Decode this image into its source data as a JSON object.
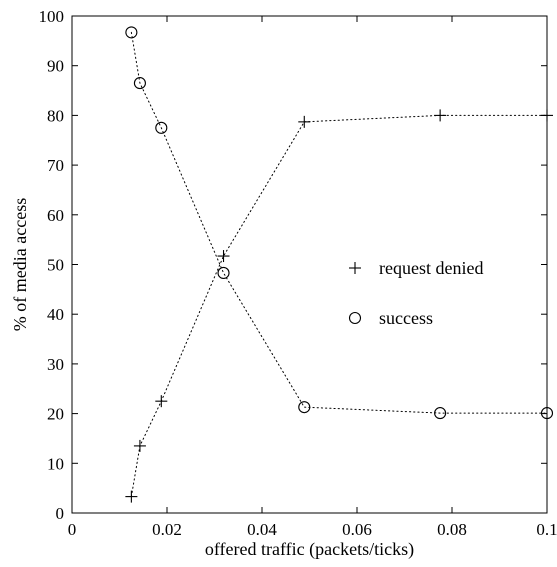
{
  "chart_data": {
    "type": "line",
    "title": "",
    "xlabel": "offered traffic (packets/ticks)",
    "ylabel": "% of media access",
    "xlim": [
      0,
      0.1
    ],
    "ylim": [
      0,
      100
    ],
    "xticks": [
      0,
      0.02,
      0.04,
      0.06,
      0.08,
      0.1
    ],
    "xtick_labels": [
      "0",
      "0.02",
      "0.04",
      "0.06",
      "0.08",
      "0.1"
    ],
    "yticks": [
      0,
      10,
      20,
      30,
      40,
      50,
      60,
      70,
      80,
      90,
      100
    ],
    "ytick_labels": [
      "0",
      "10",
      "20",
      "30",
      "40",
      "50",
      "60",
      "70",
      "80",
      "90",
      "100"
    ],
    "grid": false,
    "legend_position": "center-right",
    "series": [
      {
        "name": "request denied",
        "marker": "plus",
        "line_style": "dotted",
        "color": "#000000",
        "x": [
          0.0125,
          0.0143,
          0.0188,
          0.0319,
          0.0489,
          0.0775,
          0.1
        ],
        "y": [
          3.3,
          13.5,
          22.5,
          51.7,
          78.7,
          80,
          80
        ]
      },
      {
        "name": "success",
        "marker": "circle",
        "line_style": "dotted",
        "color": "#000000",
        "x": [
          0.0125,
          0.0143,
          0.0188,
          0.0319,
          0.0489,
          0.0775,
          0.1
        ],
        "y": [
          96.7,
          86.5,
          77.5,
          48.3,
          21.3,
          20.1,
          20.1
        ]
      }
    ]
  }
}
